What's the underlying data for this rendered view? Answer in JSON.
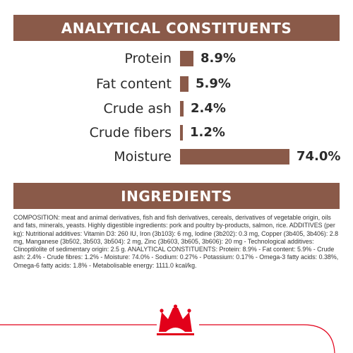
{
  "colors": {
    "accent": "#8a5a49",
    "brand_red": "#e2001a"
  },
  "analytical": {
    "title": "ANALYTICAL CONSTITUENTS",
    "items": [
      {
        "label": "Protein",
        "value": 8.9,
        "value_text": "8.9%"
      },
      {
        "label": "Fat content",
        "value": 5.9,
        "value_text": "5.9%"
      },
      {
        "label": "Crude ash",
        "value": 2.4,
        "value_text": "2.4%"
      },
      {
        "label": "Crude fibers",
        "value": 1.2,
        "value_text": "1.2%"
      },
      {
        "label": "Moisture",
        "value": 74.0,
        "value_text": "74.0%"
      }
    ]
  },
  "ingredients": {
    "title": "INGREDIENTS",
    "text": "COMPOSITION: meat and animal derivatives, fish and fish derivatives, cereals, derivatives of vegetable origin, oils and fats, minerals, yeasts. Highly digestible ingredients: pork and poultry by-products, salmon, rice. ADDITIVES (per kg): Nutritional additives: Vitamin D3: 260 IU, Iron (3b103): 6 mg, Iodine (3b202): 0.3 mg, Copper (3b405, 3b406): 2.8 mg, Manganese (3b502, 3b503, 3b504): 2 mg, Zinc (3b603, 3b605, 3b606): 20 mg - Technological additives: Clinoptilolite of sedimentary origin: 2.5 g. ANALYTICAL CONSTITUENTS: Protein: 8.9% - Fat content: 5.9% - Crude ash: 2.4% - Crude fibres: 1.2% - Moisture: 74.0% - Sodium: 0.27% - Potassium: 0.17% - Omega-3 fatty acids: 0.38%, Omega-6 fatty acids: 1.8% - Metabolisable energy: 1111.0 kcal/kg."
  },
  "footer": {
    "logo_icon": "crown-icon"
  }
}
